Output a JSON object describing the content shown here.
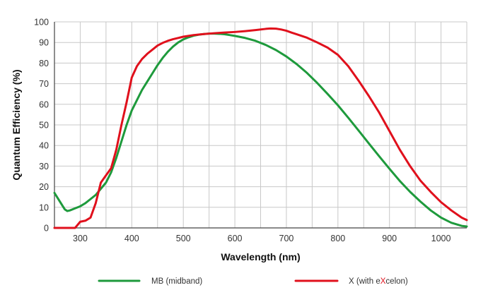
{
  "chart_data": {
    "type": "line",
    "xlabel": "Wavelength (nm)",
    "ylabel": "Quantum Efficiency  (%)",
    "xlim": [
      250,
      1050
    ],
    "ylim": [
      0,
      100
    ],
    "xticks": [
      300,
      400,
      500,
      600,
      700,
      800,
      900,
      1000
    ],
    "yticks": [
      0,
      10,
      20,
      30,
      40,
      50,
      60,
      70,
      80,
      90,
      100
    ],
    "grid": true,
    "legend_position": "bottom",
    "series": [
      {
        "name": "MB (midband)",
        "color": "#1e9a3c",
        "x": [
          250,
          260,
          270,
          275,
          280,
          290,
          300,
          310,
          320,
          330,
          340,
          350,
          360,
          370,
          380,
          390,
          400,
          410,
          420,
          430,
          440,
          450,
          460,
          470,
          480,
          490,
          500,
          510,
          520,
          530,
          540,
          550,
          560,
          570,
          580,
          590,
          600,
          620,
          640,
          660,
          680,
          700,
          720,
          740,
          760,
          780,
          800,
          820,
          840,
          860,
          880,
          900,
          920,
          940,
          960,
          980,
          1000,
          1020,
          1040,
          1050
        ],
        "y": [
          17,
          13,
          9,
          8.2,
          8.5,
          9.5,
          10.5,
          12,
          14,
          16,
          19,
          22,
          27,
          34,
          42,
          50,
          57,
          62,
          67,
          71,
          75,
          79,
          82.5,
          85.5,
          88,
          90,
          91.5,
          92.5,
          93.3,
          93.8,
          94.1,
          94.3,
          94.3,
          94.2,
          94,
          93.6,
          93.2,
          92.2,
          90.8,
          88.8,
          86.3,
          83.2,
          79.5,
          75.2,
          70.3,
          65,
          59.5,
          53.5,
          47.3,
          41,
          34.8,
          28.7,
          22.8,
          17.5,
          12.8,
          8.5,
          5,
          2.5,
          1,
          0.7
        ]
      },
      {
        "name": "X (with eXcelon)",
        "color": "#e0101c",
        "x": [
          250,
          260,
          270,
          280,
          290,
          300,
          310,
          320,
          330,
          340,
          350,
          360,
          370,
          380,
          390,
          400,
          410,
          420,
          430,
          440,
          450,
          460,
          470,
          480,
          490,
          500,
          520,
          540,
          560,
          580,
          600,
          620,
          640,
          660,
          670,
          680,
          690,
          700,
          710,
          720,
          740,
          760,
          780,
          800,
          820,
          840,
          860,
          880,
          900,
          920,
          940,
          960,
          980,
          1000,
          1020,
          1040,
          1050
        ],
        "y": [
          0,
          0,
          0,
          0,
          0,
          3,
          3.5,
          5,
          12,
          22,
          25.5,
          29,
          38,
          50,
          61,
          73,
          78.5,
          82,
          84.5,
          86.5,
          88.5,
          89.8,
          90.8,
          91.6,
          92.2,
          92.8,
          93.6,
          94.1,
          94.5,
          94.8,
          95.1,
          95.5,
          96,
          96.6,
          96.8,
          96.7,
          96.3,
          95.7,
          94.8,
          94,
          92.3,
          90,
          87.5,
          84,
          78.5,
          71.5,
          64,
          56,
          47,
          38,
          30,
          23,
          17.5,
          12.5,
          8.5,
          5,
          3.8
        ]
      }
    ]
  }
}
